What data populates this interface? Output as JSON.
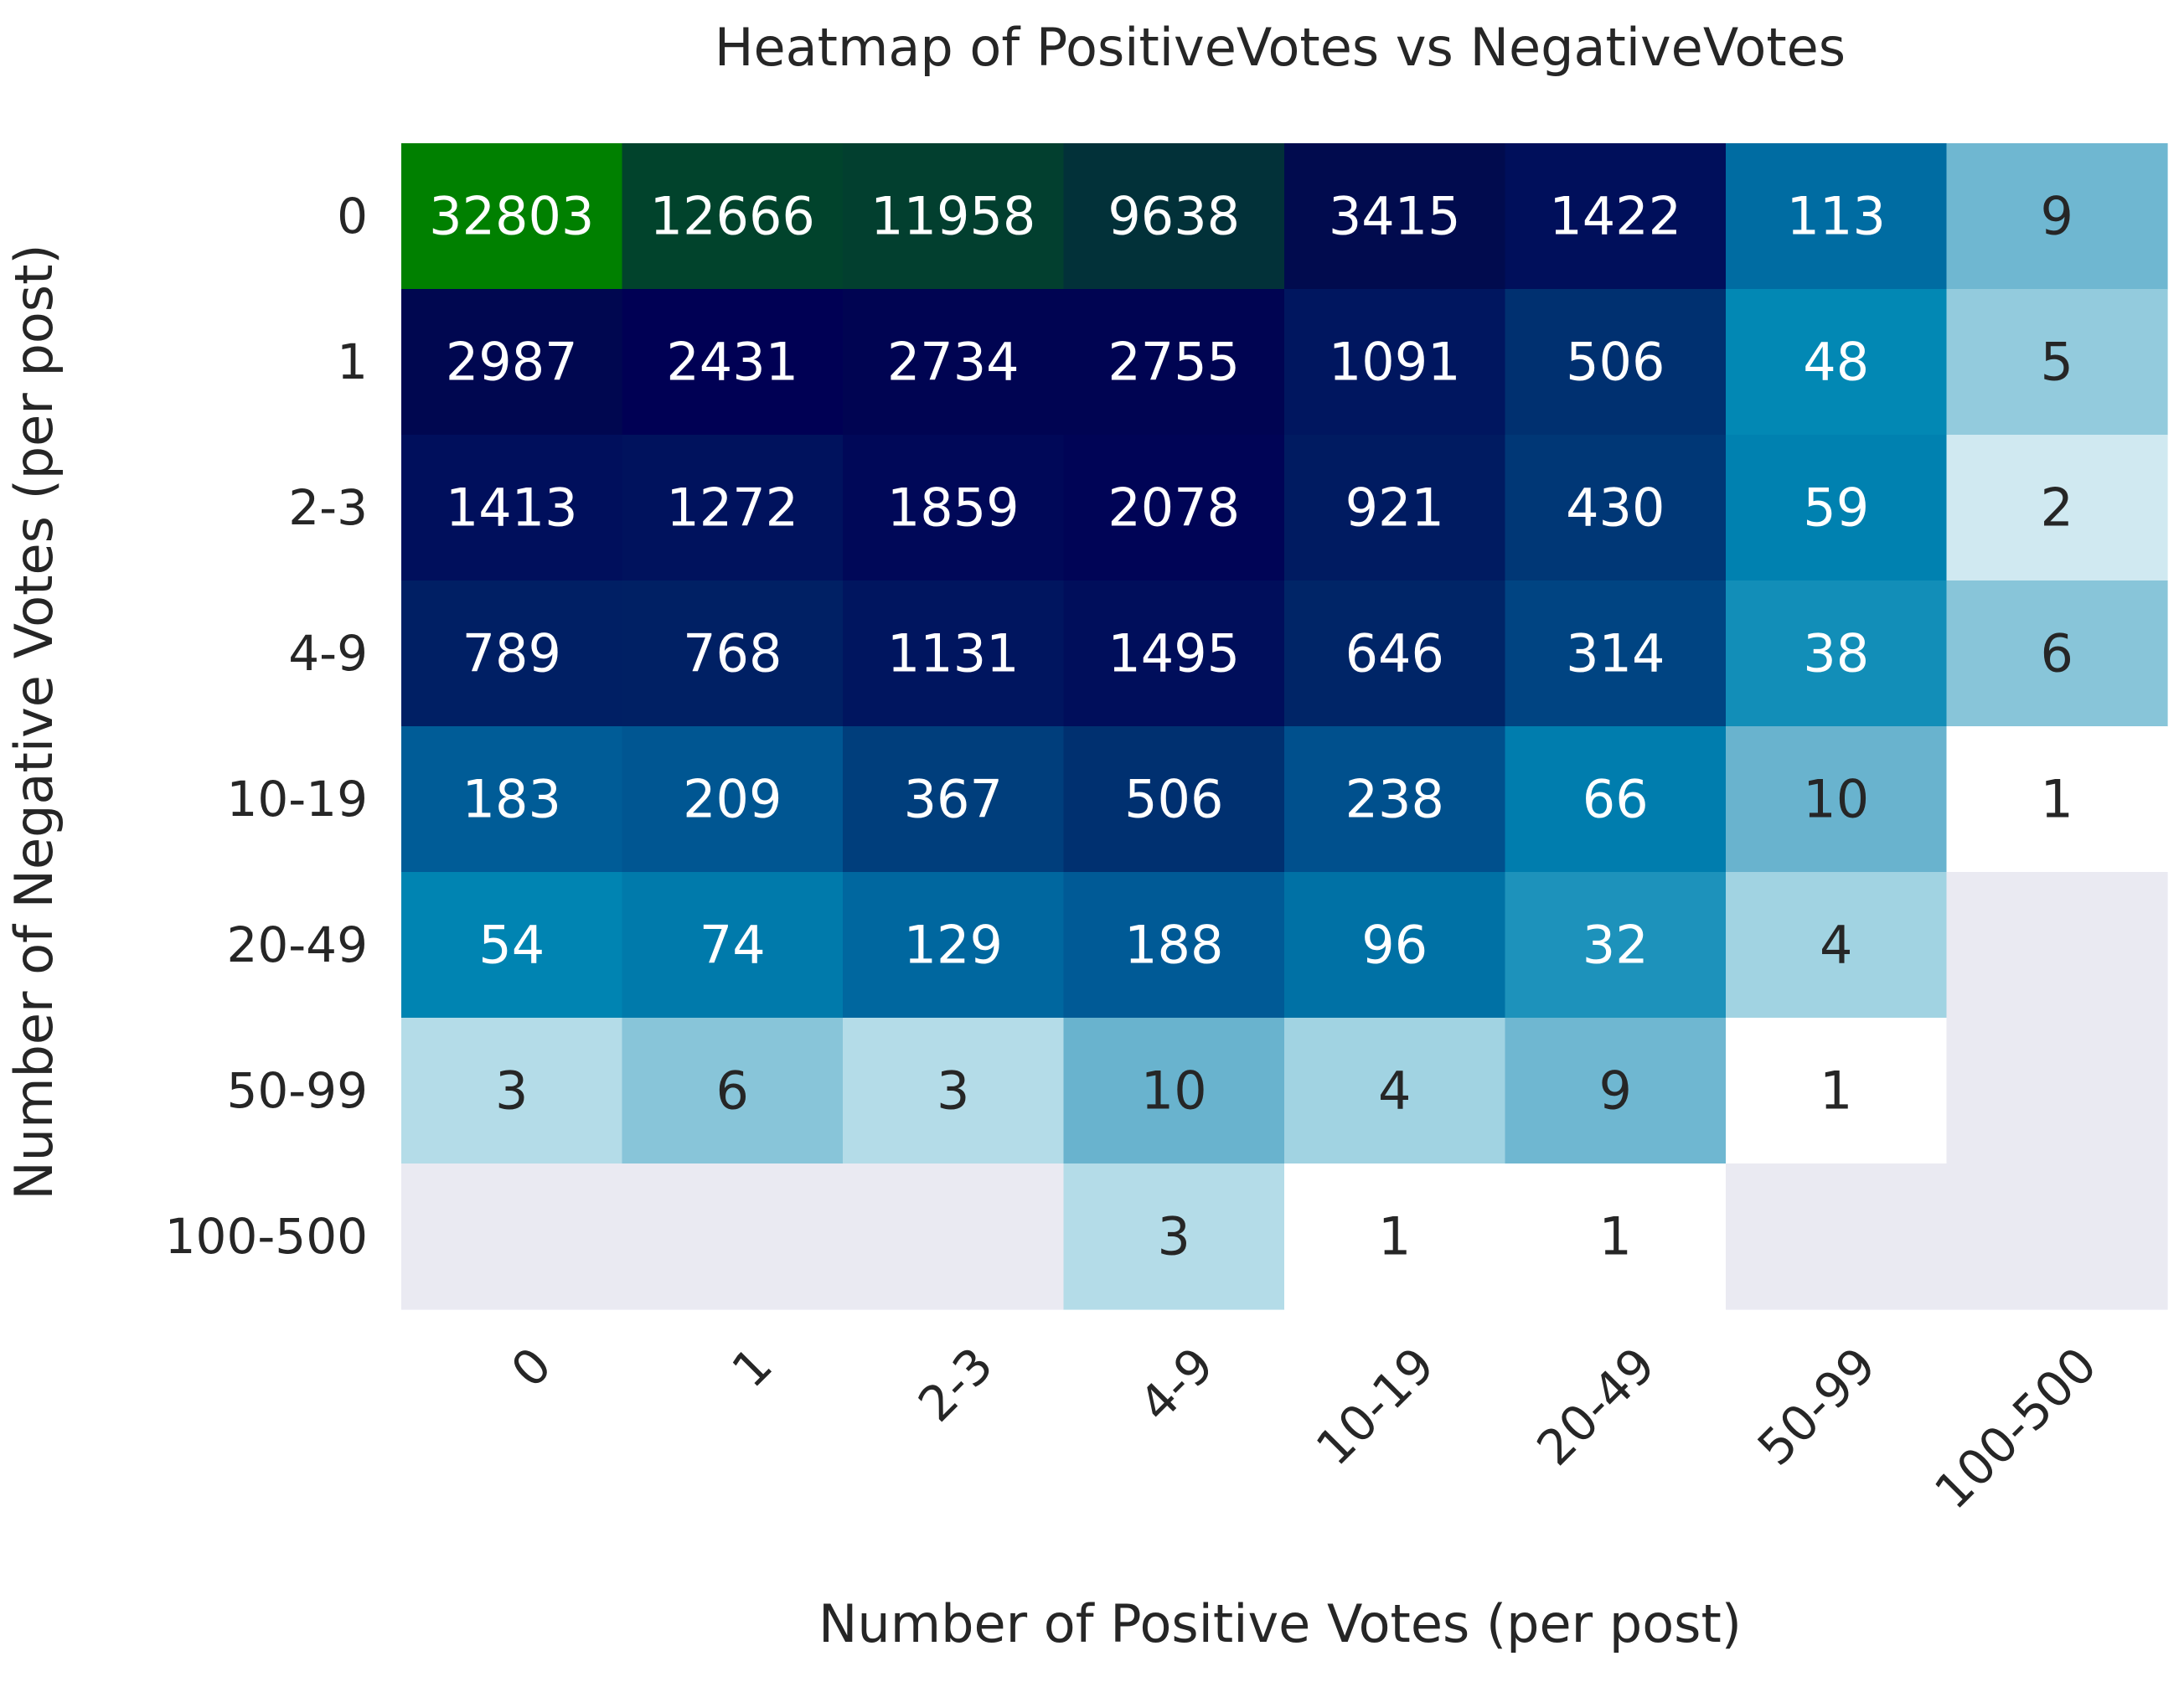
{
  "chart_data": {
    "type": "heatmap",
    "title": "Heatmap of PositiveVotes vs NegativeVotes",
    "xlabel": "Number of Positive Votes (per post)",
    "ylabel": "Number of Negative Votes (per post)",
    "x_categories": [
      "0",
      "1",
      "2-3",
      "4-9",
      "10-19",
      "20-49",
      "50-99",
      "100-500"
    ],
    "y_categories": [
      "0",
      "1",
      "2-3",
      "4-9",
      "10-19",
      "20-49",
      "50-99",
      "100-500"
    ],
    "values": [
      [
        32803,
        12666,
        11958,
        9638,
        3415,
        1422,
        113,
        9
      ],
      [
        2987,
        2431,
        2734,
        2755,
        1091,
        506,
        48,
        5
      ],
      [
        1413,
        1272,
        1859,
        2078,
        921,
        430,
        59,
        2
      ],
      [
        789,
        768,
        1131,
        1495,
        646,
        314,
        38,
        6
      ],
      [
        183,
        209,
        367,
        506,
        238,
        66,
        10,
        1
      ],
      [
        54,
        74,
        129,
        188,
        96,
        32,
        4,
        null
      ],
      [
        3,
        6,
        3,
        10,
        4,
        9,
        1,
        null
      ],
      [
        null,
        null,
        null,
        3,
        1,
        1,
        null,
        null
      ]
    ],
    "color_scale": "log",
    "colormap_stops": [
      "#ffffff",
      "#a6d6e4",
      "#57a9c8",
      "#0087b4",
      "#005c97",
      "#002466",
      "#000054",
      "#022c3c",
      "#008000"
    ],
    "missing_color": "#eaeaf2",
    "annotation_colors": {
      "dark_text": "#262626",
      "light_text": "#ffffff"
    },
    "grid": false
  }
}
